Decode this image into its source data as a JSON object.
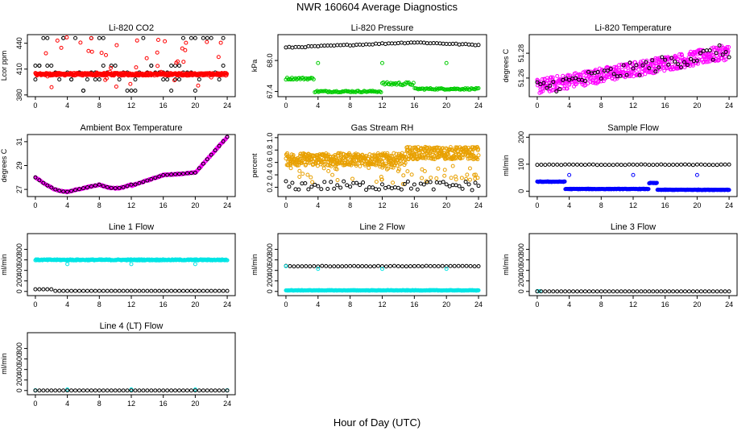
{
  "page": {
    "title": "NWR  160604  Average Diagnostics",
    "xlabel": "Hour of Day (UTC)"
  },
  "chart_data": [
    {
      "type": "scatter",
      "title": "Li-820 CO2",
      "ylabel": "Lcor ppm",
      "yticks": [
        380,
        410,
        440
      ],
      "ylim": [
        378,
        450
      ],
      "xticks": [
        0,
        4,
        8,
        12,
        16,
        20,
        24
      ],
      "xlim": [
        -1,
        25
      ],
      "series": [
        {
          "name": "black",
          "color": "#000000",
          "shape": "circle",
          "pattern": "co2_black"
        },
        {
          "name": "red",
          "color": "#ff0000",
          "shape": "circle",
          "pattern": "co2_red"
        }
      ]
    },
    {
      "type": "scatter",
      "title": "Li-820 Pressure",
      "ylabel": "kPa",
      "yticks": [
        67.4,
        68.0
      ],
      "ytick_labels": [
        "67.4",
        "68.0"
      ],
      "ylim": [
        67.3,
        68.5
      ],
      "xticks": [
        0,
        4,
        8,
        12,
        16,
        20,
        24
      ],
      "xlim": [
        -1,
        25
      ],
      "series": [
        {
          "name": "black",
          "color": "#000000",
          "shape": "circle",
          "pattern": "pres_black"
        },
        {
          "name": "green",
          "color": "#00cc00",
          "shape": "circle",
          "pattern": "pres_green"
        }
      ]
    },
    {
      "type": "scatter",
      "title": "Li-820 Temperature",
      "ylabel": "degrees C",
      "yticks": [
        51.26,
        51.28
      ],
      "ytick_labels": [
        "51.26",
        "51.28"
      ],
      "ylim": [
        51.245,
        51.295
      ],
      "xticks": [
        0,
        4,
        8,
        12,
        16,
        20,
        24
      ],
      "xlim": [
        -1,
        25
      ],
      "series": [
        {
          "name": "magenta",
          "color": "#ff00ff",
          "shape": "circle",
          "pattern": "temp_mag"
        },
        {
          "name": "black",
          "color": "#000000",
          "shape": "circle",
          "pattern": "temp_black"
        }
      ]
    },
    {
      "type": "scatter",
      "title": "Ambient Box Temperature",
      "ylabel": "degrees C",
      "yticks": [
        27,
        29,
        31
      ],
      "ylim": [
        26.4,
        31.6
      ],
      "xticks": [
        0,
        4,
        8,
        12,
        16,
        20,
        24
      ],
      "xlim": [
        -1,
        25
      ],
      "series": [
        {
          "name": "magenta",
          "color": "#ff00ff",
          "shape": "circle",
          "pattern": "amb_mag"
        },
        {
          "name": "black",
          "color": "#000000",
          "shape": "circle",
          "pattern": "amb_black"
        }
      ]
    },
    {
      "type": "scatter",
      "title": "Gas Stream RH",
      "ylabel": "percent",
      "yticks": [
        0.2,
        0.4,
        0.6,
        0.8,
        1.0
      ],
      "ytick_labels": [
        "0.2",
        "0.4",
        "0.6",
        "0.8",
        "1.0"
      ],
      "ylim": [
        0.05,
        1.05
      ],
      "xticks": [
        0,
        4,
        8,
        12,
        16,
        20,
        24
      ],
      "xlim": [
        -1,
        25
      ],
      "series": [
        {
          "name": "orange",
          "color": "#e8a000",
          "shape": "circle",
          "pattern": "rh_orange"
        },
        {
          "name": "black",
          "color": "#000000",
          "shape": "circle",
          "pattern": "rh_black"
        }
      ]
    },
    {
      "type": "scatter",
      "title": "Sample Flow",
      "ylabel": "ml/min",
      "yticks": [
        0,
        100,
        200
      ],
      "ylim": [
        -20,
        210
      ],
      "xticks": [
        0,
        4,
        8,
        12,
        16,
        20,
        24
      ],
      "xlim": [
        -1,
        25
      ],
      "series": [
        {
          "name": "black",
          "color": "#000000",
          "shape": "circle",
          "pattern": "flow_black"
        },
        {
          "name": "blue",
          "color": "#0000ff",
          "shape": "circle",
          "pattern": "flow_blue"
        }
      ]
    },
    {
      "type": "scatter",
      "title": "Line 1 Flow",
      "ylabel": "ml/min",
      "yticks": [
        0,
        200,
        400,
        600,
        800
      ],
      "ylim": [
        -80,
        1100
      ],
      "xticks": [
        0,
        4,
        8,
        12,
        16,
        20,
        24
      ],
      "xlim": [
        -1,
        25
      ],
      "series": [
        {
          "name": "cyan",
          "color": "#00e5e5",
          "shape": "circle",
          "pattern": "l1_cyan"
        },
        {
          "name": "black",
          "color": "#000000",
          "shape": "circle",
          "pattern": "l1_black"
        }
      ]
    },
    {
      "type": "scatter",
      "title": "Line 2 Flow",
      "ylabel": "ml/min",
      "yticks": [
        0,
        200,
        400,
        600,
        800
      ],
      "ylim": [
        -80,
        1100
      ],
      "xticks": [
        0,
        4,
        8,
        12,
        16,
        20,
        24
      ],
      "xlim": [
        -1,
        25
      ],
      "series": [
        {
          "name": "black",
          "color": "#000000",
          "shape": "circle",
          "pattern": "l2_black"
        },
        {
          "name": "cyan",
          "color": "#00e5e5",
          "shape": "circle",
          "pattern": "l2_cyan"
        }
      ]
    },
    {
      "type": "scatter",
      "title": "Line 3 Flow",
      "ylabel": "ml/min",
      "yticks": [
        0,
        200,
        400,
        600,
        800
      ],
      "ylim": [
        -80,
        1100
      ],
      "xticks": [
        0,
        4,
        8,
        12,
        16,
        20,
        24
      ],
      "xlim": [
        -1,
        25
      ],
      "series": [
        {
          "name": "cyan",
          "color": "#00e5e5",
          "shape": "circle",
          "pattern": "flat_cyan"
        },
        {
          "name": "black",
          "color": "#000000",
          "shape": "circle",
          "pattern": "flat_black"
        }
      ]
    },
    {
      "type": "scatter",
      "title": "Line 4 (LT) Flow",
      "ylabel": "ml/min",
      "yticks": [
        0,
        200,
        400,
        600,
        800
      ],
      "ylim": [
        -80,
        1100
      ],
      "xticks": [
        0,
        4,
        8,
        12,
        16,
        20,
        24
      ],
      "xlim": [
        -1,
        25
      ],
      "series": [
        {
          "name": "cyan",
          "color": "#00e5e5",
          "shape": "circle",
          "pattern": "l4_cyan"
        },
        {
          "name": "black",
          "color": "#000000",
          "shape": "circle",
          "pattern": "flat_black"
        }
      ]
    }
  ]
}
